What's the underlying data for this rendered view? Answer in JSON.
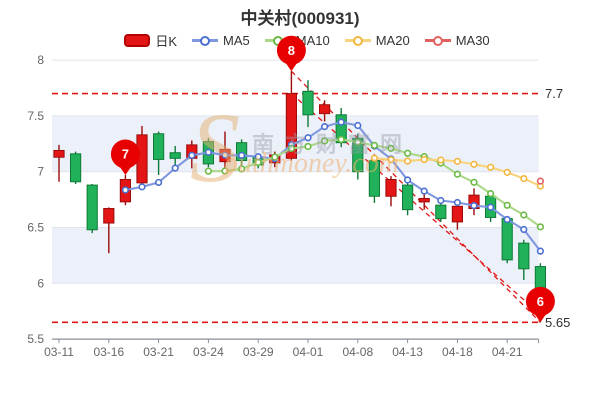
{
  "title": "中关村(000931)",
  "watermark": {
    "swirl": "S",
    "cn": "南方财富网",
    "en": "outhmoney.com"
  },
  "legend": [
    {
      "label": "日K",
      "type": "swatch",
      "color": "#e31515",
      "border": "#b30000"
    },
    {
      "label": "MA5",
      "type": "line",
      "line": "#7e97de",
      "marker": "#4a6fd0"
    },
    {
      "label": "MA10",
      "type": "line",
      "line": "#abd789",
      "marker": "#6ab942"
    },
    {
      "label": "MA20",
      "type": "line",
      "line": "#f7d47c",
      "marker": "#f2b53d"
    },
    {
      "label": "MA30",
      "type": "line",
      "line": "#e36060",
      "marker": "#e36060"
    }
  ],
  "chart_data": {
    "type": "candlestick",
    "title": "中关村(000931)",
    "ylim": [
      5.5,
      8
    ],
    "y_ticks": [
      8,
      7.5,
      7,
      6.5,
      6,
      5.5
    ],
    "x_label_interval": 3,
    "band_pairs": [
      [
        7.5,
        7.0
      ],
      [
        6.5,
        6.0
      ]
    ],
    "band_color": "#ecf0f8",
    "grid_color": "#e2e4ec",
    "axis_color": "#8a8f98",
    "axis_text_color": "#66666b",
    "up_color": "#e31515",
    "up_border": "#9c0a0a",
    "down_color": "#21b15a",
    "down_border": "#0e7a37",
    "candles": [
      {
        "date": "03-11",
        "o": 7.13,
        "h": 7.24,
        "l": 6.91,
        "c": 7.19
      },
      {
        "date": "03-14",
        "o": 7.16,
        "h": 7.18,
        "l": 6.89,
        "c": 6.91
      },
      {
        "date": "03-15",
        "o": 6.88,
        "h": 6.89,
        "l": 6.45,
        "c": 6.48
      },
      {
        "date": "03-16",
        "o": 6.54,
        "h": 6.68,
        "l": 6.27,
        "c": 6.67
      },
      {
        "date": "03-17",
        "o": 6.73,
        "h": 6.97,
        "l": 6.7,
        "c": 6.93
      },
      {
        "date": "03-18",
        "o": 6.9,
        "h": 7.41,
        "l": 6.88,
        "c": 7.33
      },
      {
        "date": "03-21",
        "o": 7.34,
        "h": 7.36,
        "l": 6.97,
        "c": 7.11
      },
      {
        "date": "03-22",
        "o": 7.17,
        "h": 7.23,
        "l": 7.06,
        "c": 7.12
      },
      {
        "date": "03-23",
        "o": 7.12,
        "h": 7.28,
        "l": 7.03,
        "c": 7.24
      },
      {
        "date": "03-24",
        "o": 7.27,
        "h": 7.3,
        "l": 7.04,
        "c": 7.07
      },
      {
        "date": "03-25",
        "o": 7.09,
        "h": 7.36,
        "l": 7.0,
        "c": 7.2
      },
      {
        "date": "03-28",
        "o": 7.26,
        "h": 7.29,
        "l": 7.04,
        "c": 7.1
      },
      {
        "date": "03-29",
        "o": 7.13,
        "h": 7.16,
        "l": 7.03,
        "c": 7.06
      },
      {
        "date": "03-30",
        "o": 7.08,
        "h": 7.18,
        "l": 7.04,
        "c": 7.15
      },
      {
        "date": "03-31",
        "o": 7.12,
        "h": 7.9,
        "l": 7.1,
        "c": 7.7
      },
      {
        "date": "04-01",
        "o": 7.72,
        "h": 7.82,
        "l": 7.4,
        "c": 7.51
      },
      {
        "date": "04-06",
        "o": 7.52,
        "h": 7.64,
        "l": 7.45,
        "c": 7.6
      },
      {
        "date": "04-07",
        "o": 7.51,
        "h": 7.57,
        "l": 7.22,
        "c": 7.26
      },
      {
        "date": "04-08",
        "o": 7.3,
        "h": 7.34,
        "l": 6.93,
        "c": 7.0
      },
      {
        "date": "04-11",
        "o": 7.1,
        "h": 7.13,
        "l": 6.72,
        "c": 6.78
      },
      {
        "date": "04-12",
        "o": 6.78,
        "h": 6.96,
        "l": 6.69,
        "c": 6.93
      },
      {
        "date": "04-13",
        "o": 6.88,
        "h": 6.91,
        "l": 6.61,
        "c": 6.66
      },
      {
        "date": "04-14",
        "o": 6.73,
        "h": 6.82,
        "l": 6.66,
        "c": 6.76
      },
      {
        "date": "04-15",
        "o": 6.7,
        "h": 6.73,
        "l": 6.55,
        "c": 6.58
      },
      {
        "date": "04-18",
        "o": 6.55,
        "h": 6.72,
        "l": 6.48,
        "c": 6.69
      },
      {
        "date": "04-19",
        "o": 6.67,
        "h": 6.85,
        "l": 6.61,
        "c": 6.79
      },
      {
        "date": "04-20",
        "o": 6.78,
        "h": 6.81,
        "l": 6.55,
        "c": 6.59
      },
      {
        "date": "04-21",
        "o": 6.58,
        "h": 6.6,
        "l": 6.18,
        "c": 6.21
      },
      {
        "date": "04-22",
        "o": 6.36,
        "h": 6.39,
        "l": 6.03,
        "c": 6.13
      },
      {
        "date": "04-25",
        "o": 6.15,
        "h": 6.18,
        "l": 5.65,
        "c": 5.72
      }
    ],
    "moving_averages": [
      {
        "name": "MA5",
        "window": 5,
        "line": "#7e97de",
        "marker": "#4a6fd0"
      },
      {
        "name": "MA10",
        "window": 10,
        "line": "#abd789",
        "marker": "#6ab942"
      },
      {
        "name": "MA20",
        "window": 20,
        "line": "#f7d47c",
        "marker": "#f2b53d"
      },
      {
        "name": "MA30",
        "window": 30,
        "line": "#e36060",
        "marker": "#e36060"
      }
    ],
    "reference_lines": {
      "color": "#e01616",
      "horizontal": [
        {
          "value": 7.7,
          "label": "7.7"
        },
        {
          "value": 5.65,
          "label": "5.65"
        }
      ],
      "diagonal": [
        {
          "from": {
            "index": 14,
            "value": 7.9
          },
          "to": {
            "index": 29,
            "value": 5.65
          }
        },
        {
          "from": {
            "index": 14,
            "value": 7.7
          },
          "to": {
            "index": 29,
            "value": 5.72
          }
        }
      ]
    },
    "pins": [
      {
        "label": "7",
        "index": 4,
        "value": 6.97
      },
      {
        "label": "8",
        "index": 14,
        "value": 7.9
      },
      {
        "label": "6",
        "index": 29,
        "value": 5.65
      }
    ],
    "pin_color": "#e60000"
  }
}
